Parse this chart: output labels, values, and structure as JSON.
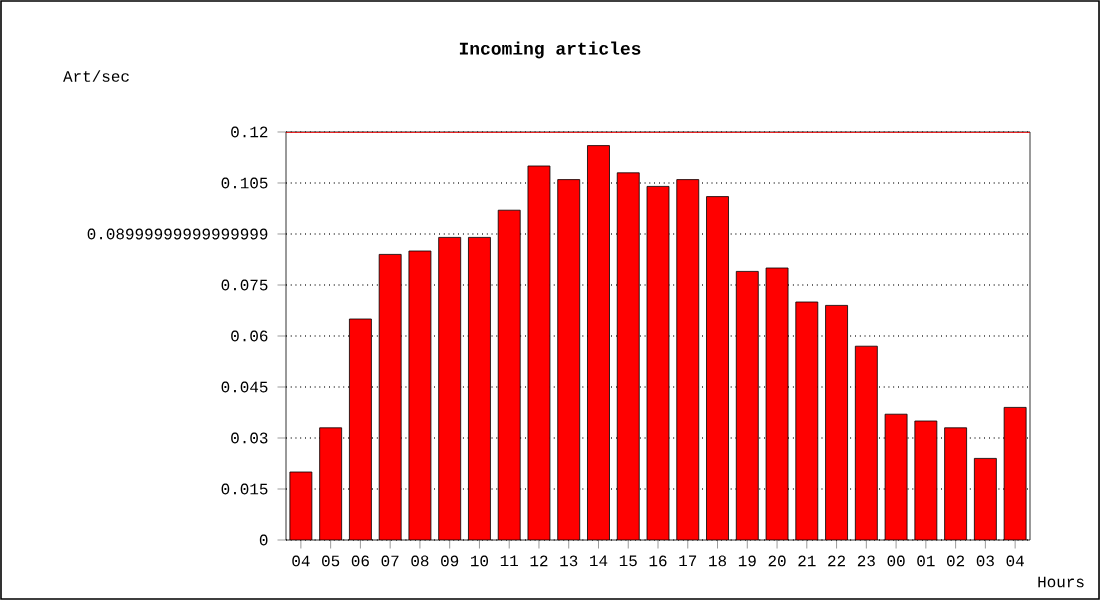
{
  "chart_data": {
    "type": "bar",
    "title": "Incoming articles",
    "ylabel": "Art/sec",
    "xlabel": "Hours",
    "categories": [
      "04",
      "05",
      "06",
      "07",
      "08",
      "09",
      "10",
      "11",
      "12",
      "13",
      "14",
      "15",
      "16",
      "17",
      "18",
      "19",
      "20",
      "21",
      "22",
      "23",
      "00",
      "01",
      "02",
      "03",
      "04"
    ],
    "values": [
      0.02,
      0.033,
      0.065,
      0.084,
      0.085,
      0.089,
      0.089,
      0.097,
      0.11,
      0.106,
      0.116,
      0.108,
      0.104,
      0.106,
      0.101,
      0.079,
      0.08,
      0.07,
      0.069,
      0.057,
      0.037,
      0.035,
      0.033,
      0.024,
      0.039
    ],
    "color": "#ff0000",
    "ylim": [
      0,
      0.12
    ],
    "yticks": [
      0,
      0.015,
      0.03,
      0.045,
      0.06,
      0.075,
      {
        "value": 0.09,
        "label": "0.08999999999999999"
      },
      0.105,
      0.12
    ],
    "grid": "y",
    "ref_lines": [
      {
        "axis": "y",
        "value": 0.12,
        "color": "#ff0000"
      }
    ]
  }
}
